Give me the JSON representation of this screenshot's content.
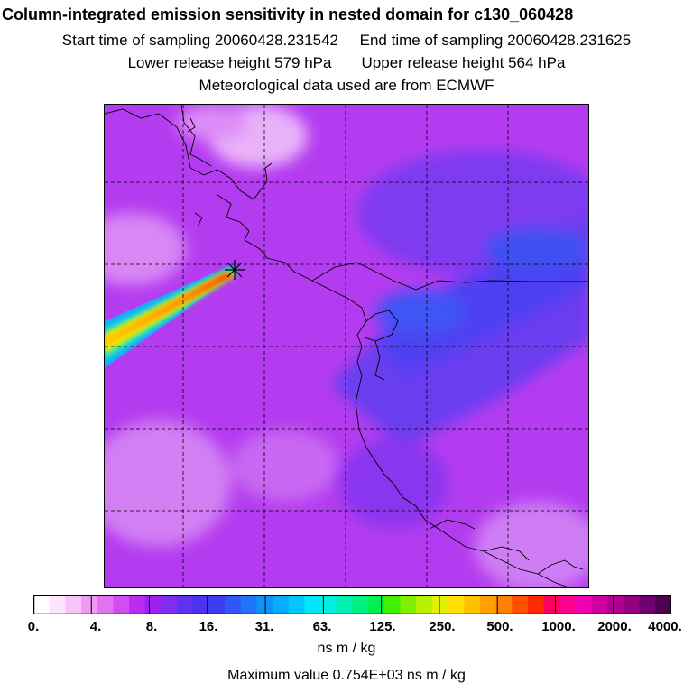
{
  "header": {
    "title": "Column-integrated emission sensitivity in nested domain for c130_060428",
    "start_label": "Start time of sampling 20060428.231542",
    "end_label": "End time of sampling 20060428.231625",
    "lower_label": "Lower release height  579 hPa",
    "upper_label": "Upper release height  564 hPa",
    "met_label": "Meteorological data used are from ECMWF"
  },
  "colorbar": {
    "tick_labels": [
      "0.",
      "4.",
      "8.",
      "16.",
      "31.",
      "63.",
      "125.",
      "250.",
      "500.",
      "1000.",
      "2000.",
      "4000."
    ],
    "colors": [
      "#ffffff",
      "#fde6fd",
      "#f7c4f8",
      "#ef9af5",
      "#e173f3",
      "#d14cf1",
      "#bb2cf0",
      "#9d22ef",
      "#7d2ef0",
      "#5e32ee",
      "#4a34f0",
      "#3c3cf3",
      "#2f58f6",
      "#1f74f8",
      "#1090fa",
      "#08acfb",
      "#00c8fc",
      "#00e6fd",
      "#00f0e0",
      "#00f0b0",
      "#00f080",
      "#00f050",
      "#40f000",
      "#80f000",
      "#b8f000",
      "#e0f000",
      "#ffe000",
      "#ffc000",
      "#ffa000",
      "#ff8000",
      "#ff5000",
      "#ff2a00",
      "#ff0060",
      "#ff0090",
      "#f000b0",
      "#d000a0",
      "#b00090",
      "#900080",
      "#700070",
      "#500050"
    ],
    "units": "ns m / kg",
    "max_value": "Maximum value  0.754E+03 ns m / kg"
  },
  "map": {
    "colors": {
      "background": "#b33af0",
      "blue_band": "#4a40f0",
      "light": "#e7a5f7",
      "coast": "#000000",
      "grid": "#000000"
    },
    "release_marker": "release-point"
  }
}
